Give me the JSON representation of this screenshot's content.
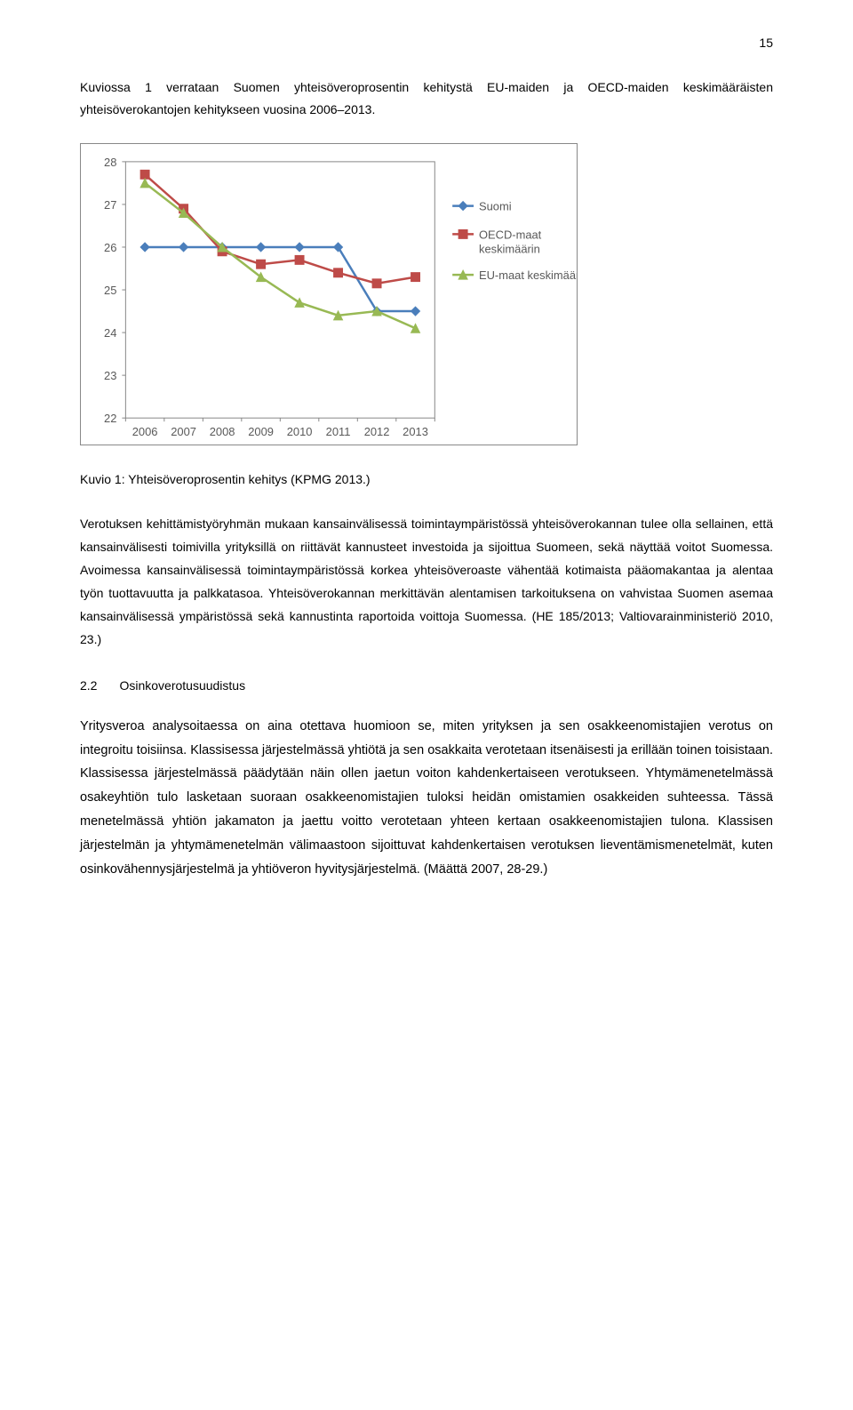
{
  "page_number": "15",
  "intro": "Kuviossa 1 verrataan Suomen yhteisöveroprosentin kehitystä EU-maiden ja OECD-maiden keskimääräisten yhteisöverokantojen kehitykseen vuosina 2006–2013.",
  "chart": {
    "type": "line",
    "x_labels": [
      "2006",
      "2007",
      "2008",
      "2009",
      "2010",
      "2011",
      "2012",
      "2013"
    ],
    "y_labels": [
      "22",
      "23",
      "24",
      "25",
      "26",
      "27",
      "28"
    ],
    "ylim": [
      22,
      28
    ],
    "series": [
      {
        "name": "Suomi",
        "color": "#4a7ebb",
        "marker": "diamond",
        "values": [
          26,
          26,
          26,
          26,
          26,
          26,
          24.5,
          24.5
        ]
      },
      {
        "name": "OECD-maat keskimäärin",
        "color": "#be4b48",
        "marker": "square",
        "values": [
          27.7,
          26.9,
          25.9,
          25.6,
          25.7,
          25.4,
          25.15,
          25.3
        ]
      },
      {
        "name": "EU-maat keskimäärin",
        "color": "#98b954",
        "marker": "triangle",
        "values": [
          27.5,
          26.8,
          26,
          25.3,
          24.7,
          24.4,
          24.5,
          24.1
        ]
      }
    ],
    "legend": [
      "Suomi",
      "OECD-maat keskimäärin",
      "EU-maat keskimäärin"
    ],
    "legend_multiline": [
      [
        "Suomi"
      ],
      [
        "OECD-maat",
        "keskimäärin"
      ],
      [
        "EU-maat keskimäärin"
      ]
    ]
  },
  "chart_caption": "Kuvio 1: Yhteisöveroprosentin kehitys (KPMG 2013.)",
  "para1": "Verotuksen kehittämistyöryhmän mukaan kansainvälisessä toimintaympäristössä yhteisöverokannan tulee olla sellainen, että kansainvälisesti toimivilla yrityksillä on riittävät kannusteet investoida ja sijoittua Suomeen, sekä näyttää voitot Suomessa. Avoimessa kansainvälisessä toimintaympäristössä korkea yhteisöveroaste vähentää kotimaista pääomakantaa ja alentaa työn tuottavuutta ja palkkatasoa. Yhteisöverokannan merkittävän alentamisen tarkoituksena on vahvistaa Suomen asemaa kansainvälisessä ympäristössä sekä kannustinta raportoida voittoja Suomessa. (HE 185/2013; Valtiovarainministeriö 2010, 23.)",
  "section": {
    "num": "2.2",
    "title": "Osinkoverotusuudistus"
  },
  "para2": "Yritysveroa analysoitaessa on aina otettava huomioon se, miten yrityksen ja sen osakkeenomistajien verotus on integroitu toisiinsa. Klassisessa järjestelmässä yhtiötä ja sen osakkaita verotetaan itsenäisesti ja erillään toinen toisistaan. Klassisessa järjestelmässä päädytään näin ollen jaetun voiton kahdenkertaiseen verotukseen. Yhtymämenetelmässä osakeyhtiön tulo lasketaan suoraan osakkeenomistajien tuloksi heidän omistamien osakkeiden suhteessa. Tässä menetelmässä yhtiön jakamaton ja jaettu voitto verotetaan yhteen kertaan osakkeenomistajien tulona. Klassisen järjestelmän ja yhtymämenetelmän välimaastoon sijoittuvat kahdenkertaisen verotuksen lieventämismenetelmät, kuten osinkovähennysjärjestelmä ja yhtiöveron hyvitysjärjestelmä. (Määttä 2007, 28-29.)"
}
